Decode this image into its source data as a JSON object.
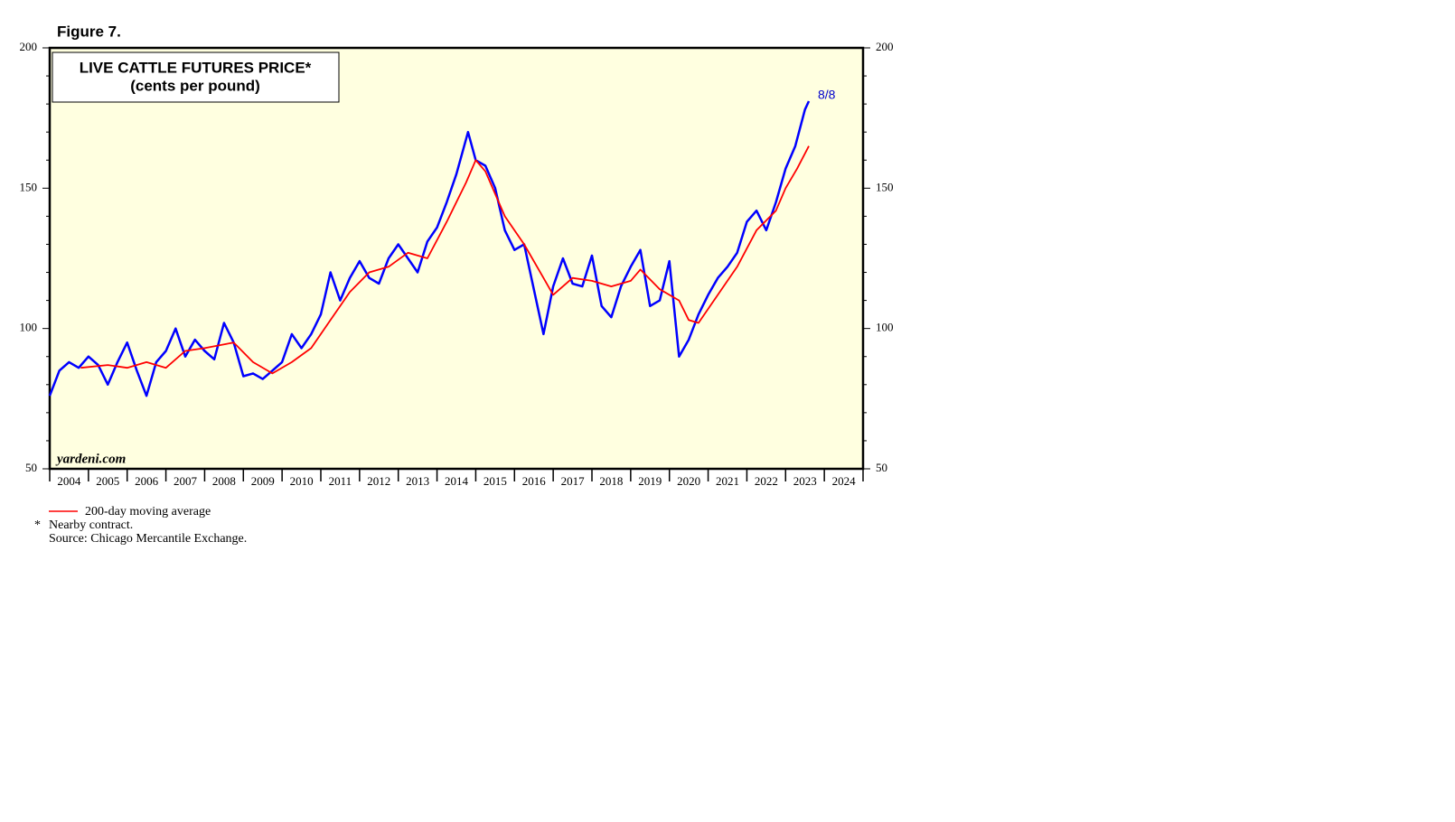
{
  "chart_data": {
    "type": "line",
    "figure_label": "Figure 7.",
    "title": "LIVE CATTLE  FUTURES PRICE*",
    "subtitle": "(cents per pound)",
    "watermark": "yardeni.com",
    "annotation": "8/8",
    "footnote_marker": "*",
    "footnote": "Nearby contract.",
    "source": "Source: Chicago Mercantile Exchange.",
    "xlim": [
      2004,
      2025
    ],
    "xticks": [
      2004,
      2005,
      2006,
      2007,
      2008,
      2009,
      2010,
      2011,
      2012,
      2013,
      2014,
      2015,
      2016,
      2017,
      2018,
      2019,
      2020,
      2021,
      2022,
      2023,
      2024,
      2025
    ],
    "year_labels": [
      "2004",
      "2005",
      "2006",
      "2007",
      "2008",
      "2009",
      "2010",
      "2011",
      "2012",
      "2013",
      "2014",
      "2015",
      "2016",
      "2017",
      "2018",
      "2019",
      "2020",
      "2021",
      "2022",
      "2023",
      "2024"
    ],
    "ylim": [
      50,
      200
    ],
    "yticks": [
      50,
      100,
      150,
      200
    ],
    "y_minor_ticks": [
      60,
      70,
      80,
      90,
      110,
      120,
      130,
      140,
      160,
      170,
      180,
      190
    ],
    "background": "#ffffe0",
    "series": [
      {
        "color": "#0000ff",
        "x": [
          2004.0,
          2004.25,
          2004.5,
          2004.75,
          2005.0,
          2005.25,
          2005.5,
          2005.75,
          2006.0,
          2006.25,
          2006.5,
          2006.75,
          2007.0,
          2007.25,
          2007.5,
          2007.75,
          2008.0,
          2008.25,
          2008.5,
          2008.75,
          2009.0,
          2009.25,
          2009.5,
          2009.75,
          2010.0,
          2010.25,
          2010.5,
          2010.75,
          2011.0,
          2011.25,
          2011.5,
          2011.75,
          2012.0,
          2012.25,
          2012.5,
          2012.75,
          2013.0,
          2013.25,
          2013.5,
          2013.75,
          2014.0,
          2014.25,
          2014.5,
          2014.8,
          2015.0,
          2015.25,
          2015.5,
          2015.75,
          2016.0,
          2016.25,
          2016.5,
          2016.75,
          2017.0,
          2017.25,
          2017.5,
          2017.75,
          2018.0,
          2018.25,
          2018.5,
          2018.75,
          2019.0,
          2019.25,
          2019.5,
          2019.75,
          2020.0,
          2020.25,
          2020.5,
          2020.75,
          2021.0,
          2021.25,
          2021.5,
          2021.75,
          2022.0,
          2022.25,
          2022.5,
          2022.75,
          2023.0,
          2023.25,
          2023.5,
          2023.6
        ],
        "values": [
          76,
          85,
          88,
          86,
          90,
          87,
          80,
          88,
          95,
          85,
          76,
          88,
          92,
          100,
          90,
          96,
          92,
          89,
          102,
          95,
          83,
          84,
          82,
          85,
          88,
          98,
          93,
          98,
          105,
          120,
          110,
          118,
          124,
          118,
          116,
          125,
          130,
          125,
          120,
          131,
          136,
          145,
          155,
          170,
          160,
          158,
          150,
          135,
          128,
          130,
          114,
          98,
          115,
          125,
          116,
          115,
          126,
          108,
          104,
          115,
          122,
          128,
          108,
          110,
          124,
          90,
          96,
          105,
          112,
          118,
          122,
          127,
          138,
          142,
          135,
          145,
          157,
          165,
          178,
          181
        ]
      },
      {
        "name": "200-day moving average",
        "color": "#ff0000",
        "x": [
          2004.8,
          2005.5,
          2006.0,
          2006.5,
          2007.0,
          2007.5,
          2008.0,
          2008.75,
          2009.25,
          2009.75,
          2010.25,
          2010.75,
          2011.25,
          2011.75,
          2012.25,
          2012.75,
          2013.25,
          2013.75,
          2014.25,
          2014.75,
          2015.0,
          2015.25,
          2015.75,
          2016.25,
          2016.75,
          2017.0,
          2017.5,
          2018.0,
          2018.5,
          2019.0,
          2019.25,
          2019.75,
          2020.25,
          2020.5,
          2020.75,
          2021.25,
          2021.75,
          2022.25,
          2022.75,
          2023.0,
          2023.3,
          2023.6
        ],
        "values": [
          86,
          87,
          86,
          88,
          86,
          92,
          93,
          95,
          88,
          84,
          88,
          93,
          103,
          113,
          120,
          122,
          127,
          125,
          138,
          152,
          160,
          156,
          140,
          130,
          118,
          112,
          118,
          117,
          115,
          117,
          121,
          114,
          110,
          103,
          102,
          112,
          122,
          135,
          142,
          150,
          157,
          165
        ]
      }
    ]
  }
}
